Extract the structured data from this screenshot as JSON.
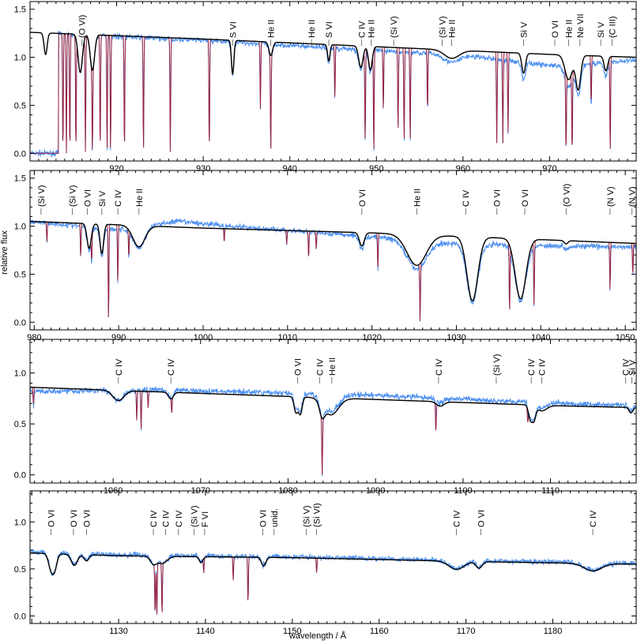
{
  "chart_data": {
    "type": "line",
    "xlabel": "wavelength / Å",
    "ylabel": "relative flux",
    "series_colors": {
      "observed": "#4a8ef0",
      "model_ism": "#9b1f3c",
      "model_photosphere": "#000000"
    },
    "panels": [
      {
        "xlim": [
          910,
          980
        ],
        "ylim": [
          -0.08,
          1.58
        ],
        "xticks": [
          920,
          930,
          940,
          950,
          960,
          970
        ],
        "yticks": [
          "0.0",
          "0.5",
          "1.0",
          "1.5"
        ],
        "continuum": {
          "x": [
            910,
            930,
            950,
            970,
            980
          ],
          "y": [
            1.26,
            1.19,
            1.11,
            1.03,
            1.0
          ]
        },
        "cutoff": 913.3,
        "observed_offset": [
          {
            "x": 910,
            "dy": 0.0
          },
          {
            "x": 935,
            "dy": -0.02
          },
          {
            "x": 960,
            "dy": -0.05
          },
          {
            "x": 971,
            "dy": -0.12
          },
          {
            "x": 980,
            "dy": -0.03
          }
        ],
        "broad_features": [
          {
            "x": 911.8,
            "depth": 0.18,
            "width": 0.25
          },
          {
            "x": 915.8,
            "depth": 0.32,
            "width": 0.35
          },
          {
            "x": 917.2,
            "depth": 0.3,
            "width": 0.35
          },
          {
            "x": 933.4,
            "depth": 0.3,
            "width": 0.2
          },
          {
            "x": 937.8,
            "depth": 0.12,
            "width": 0.3
          },
          {
            "x": 944.5,
            "depth": 0.15,
            "width": 0.2
          },
          {
            "x": 948.2,
            "depth": 0.2,
            "width": 0.35
          },
          {
            "x": 949.3,
            "depth": 0.22,
            "width": 0.3
          },
          {
            "x": 958.7,
            "depth": 0.08,
            "width": 1.2
          },
          {
            "x": 967.0,
            "depth": 0.2,
            "width": 0.3
          },
          {
            "x": 972.2,
            "depth": 0.25,
            "width": 0.6
          },
          {
            "x": 973.3,
            "depth": 0.35,
            "width": 0.4
          },
          {
            "x": 976.5,
            "depth": 0.15,
            "width": 0.3
          }
        ],
        "ism_lines": [
          {
            "x": 913.8,
            "depth": 1.0
          },
          {
            "x": 914.2,
            "depth": 1.0
          },
          {
            "x": 914.6,
            "depth": 1.0
          },
          {
            "x": 915.3,
            "depth": 1.0
          },
          {
            "x": 916.4,
            "depth": 1.0
          },
          {
            "x": 917.2,
            "depth": 1.0
          },
          {
            "x": 918.1,
            "depth": 1.0
          },
          {
            "x": 918.9,
            "depth": 1.0
          },
          {
            "x": 919.3,
            "depth": 1.0
          },
          {
            "x": 920.9,
            "depth": 1.0
          },
          {
            "x": 923.1,
            "depth": 1.0
          },
          {
            "x": 926.2,
            "depth": 1.0
          },
          {
            "x": 930.7,
            "depth": 1.0
          },
          {
            "x": 937.8,
            "depth": 1.0
          },
          {
            "x": 936.6,
            "depth": 0.6
          },
          {
            "x": 945.2,
            "depth": 0.5
          },
          {
            "x": 948.7,
            "depth": 0.9
          },
          {
            "x": 949.7,
            "depth": 1.0
          },
          {
            "x": 950.8,
            "depth": 0.6
          },
          {
            "x": 952.5,
            "depth": 0.8
          },
          {
            "x": 953.2,
            "depth": 0.9
          },
          {
            "x": 953.9,
            "depth": 0.9
          },
          {
            "x": 955.9,
            "depth": 0.6
          },
          {
            "x": 963.9,
            "depth": 0.9
          },
          {
            "x": 964.6,
            "depth": 0.9
          },
          {
            "x": 965.2,
            "depth": 0.8
          },
          {
            "x": 971.9,
            "depth": 1.0
          },
          {
            "x": 972.6,
            "depth": 1.0
          },
          {
            "x": 974.8,
            "depth": 0.5
          },
          {
            "x": 977.0,
            "depth": 1.0
          }
        ],
        "labels": [
          {
            "x": 916.0,
            "text": "(O VI)"
          },
          {
            "x": 933.4,
            "text": "S VI"
          },
          {
            "x": 937.8,
            "text": "He II"
          },
          {
            "x": 942.5,
            "text": "He II"
          },
          {
            "x": 944.5,
            "text": "S VI"
          },
          {
            "x": 948.3,
            "text": "C IV"
          },
          {
            "x": 949.4,
            "text": "He II"
          },
          {
            "x": 952.0,
            "text": "(Si V)"
          },
          {
            "x": 957.6,
            "text": "(Si V)"
          },
          {
            "x": 958.7,
            "text": "He II"
          },
          {
            "x": 967.0,
            "text": "Si V"
          },
          {
            "x": 970.6,
            "text": "O VI"
          },
          {
            "x": 972.2,
            "text": "He II"
          },
          {
            "x": 973.5,
            "text": "Ne VII"
          },
          {
            "x": 975.9,
            "text": "Si V"
          },
          {
            "x": 977.2,
            "text": "(C III)"
          }
        ]
      },
      {
        "xlim": [
          979.5,
          1051.3
        ],
        "ylim": [
          -0.08,
          1.58
        ],
        "xticks": [
          980,
          990,
          1000,
          1010,
          1020,
          1030,
          1040,
          1050
        ],
        "yticks": [
          "0.0",
          "0.5",
          "1.0",
          "1.5"
        ],
        "continuum": {
          "x": [
            979.5,
            1000,
            1020,
            1040,
            1051.3
          ],
          "y": [
            1.05,
            0.98,
            0.93,
            0.86,
            0.82
          ]
        },
        "cutoff": null,
        "observed_offset": [
          {
            "x": 979.5,
            "dy": 0.0
          },
          {
            "x": 990,
            "dy": -0.05
          },
          {
            "x": 997,
            "dy": 0.06
          },
          {
            "x": 1010,
            "dy": 0.0
          },
          {
            "x": 1030,
            "dy": -0.08
          },
          {
            "x": 1051.3,
            "dy": -0.04
          }
        ],
        "broad_features": [
          {
            "x": 986.5,
            "depth": 0.25,
            "width": 0.35
          },
          {
            "x": 988.0,
            "depth": 0.3,
            "width": 0.3
          },
          {
            "x": 992.4,
            "depth": 0.22,
            "width": 1.0
          },
          {
            "x": 1018.8,
            "depth": 0.15,
            "width": 0.4
          },
          {
            "x": 1025.3,
            "depth": 0.35,
            "width": 1.6
          },
          {
            "x": 1031.9,
            "depth": 0.75,
            "width": 0.9
          },
          {
            "x": 1037.6,
            "depth": 0.72,
            "width": 0.9
          },
          {
            "x": 1043.0,
            "depth": 0.04,
            "width": 0.3
          }
        ],
        "ism_lines": [
          {
            "x": 981.5,
            "depth": 0.2
          },
          {
            "x": 985.5,
            "depth": 0.35
          },
          {
            "x": 986.8,
            "depth": 0.3
          },
          {
            "x": 988.8,
            "depth": 1.0
          },
          {
            "x": 989.9,
            "depth": 0.6
          },
          {
            "x": 991.2,
            "depth": 0.3
          },
          {
            "x": 1002.5,
            "depth": 0.15
          },
          {
            "x": 1009.9,
            "depth": 0.15
          },
          {
            "x": 1012.5,
            "depth": 0.3
          },
          {
            "x": 1013.4,
            "depth": 0.2
          },
          {
            "x": 1020.7,
            "depth": 0.4
          },
          {
            "x": 1025.7,
            "depth": 1.0
          },
          {
            "x": 1036.3,
            "depth": 0.9
          },
          {
            "x": 1039.2,
            "depth": 0.8
          },
          {
            "x": 1048.2,
            "depth": 0.6
          },
          {
            "x": 1050.9,
            "depth": 0.4
          }
        ],
        "labels": [
          {
            "x": 980.8,
            "text": "(Si V)"
          },
          {
            "x": 984.5,
            "text": "(Si V)"
          },
          {
            "x": 986.3,
            "text": "O VI"
          },
          {
            "x": 988.0,
            "text": "Si V"
          },
          {
            "x": 989.9,
            "text": "C IV"
          },
          {
            "x": 992.4,
            "text": "He II"
          },
          {
            "x": 1018.8,
            "text": "O VI"
          },
          {
            "x": 1025.3,
            "text": "He II"
          },
          {
            "x": 1031.1,
            "text": "C IV"
          },
          {
            "x": 1034.8,
            "text": "O VI"
          },
          {
            "x": 1038.1,
            "text": "O VI"
          },
          {
            "x": 1043.0,
            "text": "(O VI)"
          },
          {
            "x": 1048.2,
            "text": "(N V)"
          },
          {
            "x": 1050.8,
            "text": "(N V)"
          }
        ]
      },
      {
        "xlim": [
          1050.5,
          1119.8
        ],
        "ylim": [
          -0.08,
          1.33
        ],
        "xticks": [
          1060,
          1070,
          1080,
          1090,
          1100,
          1110
        ],
        "yticks": [
          "0.0",
          "0.5",
          "1.0"
        ],
        "continuum": {
          "x": [
            1050.5,
            1070,
            1090,
            1110,
            1119.8
          ],
          "y": [
            0.86,
            0.8,
            0.74,
            0.68,
            0.66
          ]
        },
        "cutoff": null,
        "observed_offset": [
          {
            "x": 1050.5,
            "dy": -0.04
          },
          {
            "x": 1065,
            "dy": 0.02
          },
          {
            "x": 1090,
            "dy": 0.04
          },
          {
            "x": 1119.8,
            "dy": 0.02
          }
        ],
        "broad_features": [
          {
            "x": 1060.6,
            "depth": 0.12,
            "width": 0.9
          },
          {
            "x": 1066.6,
            "depth": 0.08,
            "width": 0.4
          },
          {
            "x": 1080.9,
            "depth": 0.2,
            "width": 0.3
          },
          {
            "x": 1081.4,
            "depth": 0.22,
            "width": 0.3
          },
          {
            "x": 1083.9,
            "depth": 0.18,
            "width": 0.4
          },
          {
            "x": 1084.9,
            "depth": 0.22,
            "width": 1.2
          },
          {
            "x": 1097.4,
            "depth": 0.06,
            "width": 0.6
          },
          {
            "x": 1107.7,
            "depth": 0.2,
            "width": 0.3
          },
          {
            "x": 1108.1,
            "depth": 0.2,
            "width": 0.3
          },
          {
            "x": 1109.0,
            "depth": 0.08,
            "width": 0.8
          },
          {
            "x": 1119.2,
            "depth": 0.08,
            "width": 0.3
          }
        ],
        "ism_lines": [
          {
            "x": 1050.9,
            "depth": 0.2
          },
          {
            "x": 1062.7,
            "depth": 0.35
          },
          {
            "x": 1063.2,
            "depth": 0.45
          },
          {
            "x": 1064.0,
            "depth": 0.2
          },
          {
            "x": 1066.7,
            "depth": 0.2
          },
          {
            "x": 1083.9,
            "depth": 1.0
          },
          {
            "x": 1096.9,
            "depth": 0.4
          },
          {
            "x": 1107.4,
            "depth": 0.2
          }
        ],
        "labels": [
          {
            "x": 1060.6,
            "text": "C IV"
          },
          {
            "x": 1066.6,
            "text": "C IV"
          },
          {
            "x": 1081.1,
            "text": "O VI"
          },
          {
            "x": 1083.6,
            "text": "C IV"
          },
          {
            "x": 1085.0,
            "text": "He II"
          },
          {
            "x": 1097.2,
            "text": "C IV"
          },
          {
            "x": 1103.8,
            "text": "(Si V)"
          },
          {
            "x": 1107.8,
            "text": "C IV"
          },
          {
            "x": 1109.0,
            "text": "C IV"
          },
          {
            "x": 1118.6,
            "text": "C IV"
          },
          {
            "x": 1119.3,
            "text": "Si V"
          }
        ]
      },
      {
        "xlim": [
          1119.8,
          1189.6
        ],
        "ylim": [
          -0.08,
          1.33
        ],
        "xticks": [
          1130,
          1140,
          1150,
          1160,
          1170,
          1180
        ],
        "yticks": [
          "0.0",
          "0.5",
          "1.0"
        ],
        "continuum": {
          "x": [
            1119.8,
            1130,
            1150,
            1170,
            1189.6
          ],
          "y": [
            0.67,
            0.64,
            0.62,
            0.58,
            0.55
          ]
        },
        "cutoff": null,
        "observed_offset": [
          {
            "x": 1119.8,
            "dy": 0.01
          },
          {
            "x": 1150,
            "dy": 0.01
          },
          {
            "x": 1189.6,
            "dy": 0.01
          }
        ],
        "broad_features": [
          {
            "x": 1122.2,
            "depth": 0.22,
            "width": 0.4
          },
          {
            "x": 1122.6,
            "depth": 0.25,
            "width": 0.4
          },
          {
            "x": 1124.9,
            "depth": 0.18,
            "width": 0.5
          },
          {
            "x": 1126.3,
            "depth": 0.1,
            "width": 0.4
          },
          {
            "x": 1134.0,
            "depth": 0.12,
            "width": 0.5
          },
          {
            "x": 1135.0,
            "depth": 0.12,
            "width": 0.8
          },
          {
            "x": 1139.5,
            "depth": 0.1,
            "width": 0.3
          },
          {
            "x": 1146.7,
            "depth": 0.15,
            "width": 0.35
          },
          {
            "x": 1168.9,
            "depth": 0.15,
            "width": 1.2
          },
          {
            "x": 1171.5,
            "depth": 0.12,
            "width": 0.5
          },
          {
            "x": 1184.6,
            "depth": 0.14,
            "width": 1.4
          }
        ],
        "ism_lines": [
          {
            "x": 1134.2,
            "depth": 1.0
          },
          {
            "x": 1134.4,
            "depth": 1.0
          },
          {
            "x": 1135.0,
            "depth": 1.0
          },
          {
            "x": 1139.8,
            "depth": 0.25
          },
          {
            "x": 1143.2,
            "depth": 0.4
          },
          {
            "x": 1144.9,
            "depth": 0.8
          },
          {
            "x": 1152.8,
            "depth": 0.25
          }
        ],
        "labels": [
          {
            "x": 1122.2,
            "text": "O VI"
          },
          {
            "x": 1124.8,
            "text": "O VI"
          },
          {
            "x": 1126.3,
            "text": "O VI"
          },
          {
            "x": 1134.0,
            "text": "C IV"
          },
          {
            "x": 1135.4,
            "text": "C IV"
          },
          {
            "x": 1136.9,
            "text": "C IV"
          },
          {
            "x": 1138.7,
            "text": "(Si V)"
          },
          {
            "x": 1139.9,
            "text": "F VI"
          },
          {
            "x": 1146.6,
            "text": "O VI"
          },
          {
            "x": 1147.9,
            "text": "unid."
          },
          {
            "x": 1151.6,
            "text": "(Si V)"
          },
          {
            "x": 1152.8,
            "text": "(Si VI)"
          },
          {
            "x": 1168.9,
            "text": "C IV"
          },
          {
            "x": 1171.7,
            "text": "O VI"
          },
          {
            "x": 1184.6,
            "text": "C IV"
          }
        ]
      }
    ]
  }
}
